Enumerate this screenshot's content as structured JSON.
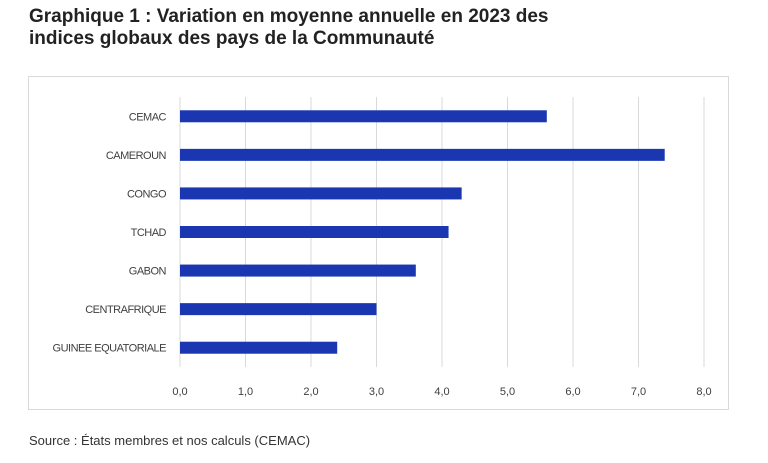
{
  "title_line1": "Graphique 1 : Variation en moyenne annuelle en 2023 des",
  "title_line2": "indices globaux des pays de la Communauté",
  "source": "Source : États membres et nos calculs (CEMAC)",
  "colors": {
    "bar": "#1a36b0",
    "grid": "#d9d9d9",
    "text": "#404040"
  },
  "chart_data": {
    "type": "bar",
    "orientation": "horizontal",
    "categories": [
      "CEMAC",
      "CAMEROUN",
      "CONGO",
      "TCHAD",
      "GABON",
      "CENTRAFRIQUE",
      "GUINEE EQUATORIALE"
    ],
    "values": [
      5.6,
      7.4,
      4.3,
      4.1,
      3.6,
      3.0,
      2.4
    ],
    "xlim": [
      0,
      8
    ],
    "xticks": [
      "0,0",
      "1,0",
      "2,0",
      "3,0",
      "4,0",
      "5,0",
      "6,0",
      "7,0",
      "8,0"
    ],
    "grid": "vertical",
    "legend": "none"
  }
}
